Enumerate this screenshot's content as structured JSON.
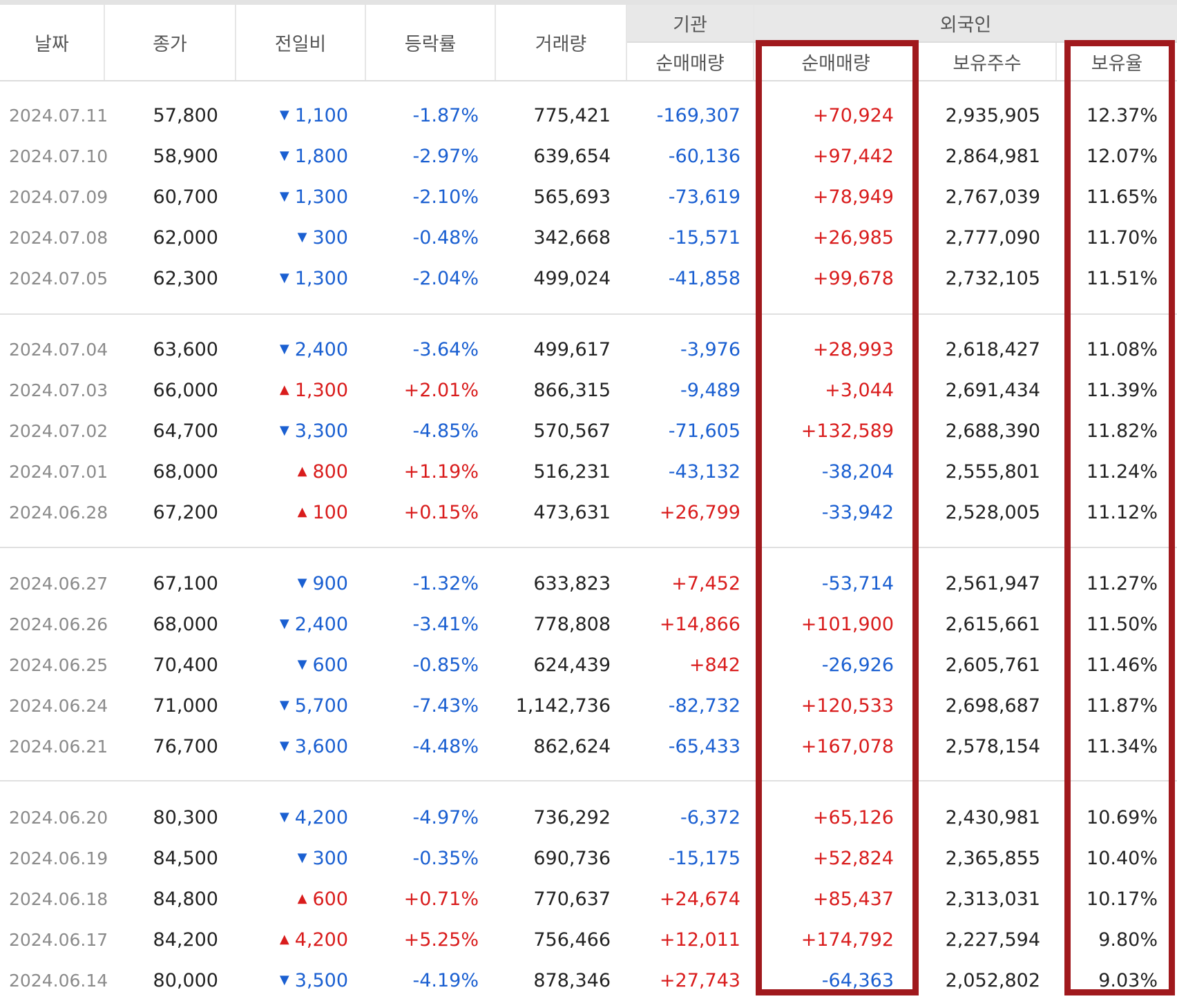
{
  "headers": {
    "date": "날짜",
    "close": "종가",
    "change": "전일비",
    "rate": "등락률",
    "volume": "거래량",
    "institution": "기관",
    "institution_net": "순매매량",
    "foreign": "외국인",
    "foreign_net": "순매매량",
    "foreign_holdings": "보유주수",
    "foreign_ratio": "보유율"
  },
  "colors": {
    "up": "#d91c1c",
    "down": "#1a5fd1",
    "highlight_box": "#a0191d"
  },
  "rows": [
    {
      "date": "2024.07.11",
      "close": "57,800",
      "dir": "down",
      "change": "1,100",
      "rate": "-1.87%",
      "volume": "775,421",
      "inst": "-169,307",
      "foreign_net": "+70,924",
      "holdings": "2,935,905",
      "ratio": "12.37%"
    },
    {
      "date": "2024.07.10",
      "close": "58,900",
      "dir": "down",
      "change": "1,800",
      "rate": "-2.97%",
      "volume": "639,654",
      "inst": "-60,136",
      "foreign_net": "+97,442",
      "holdings": "2,864,981",
      "ratio": "12.07%"
    },
    {
      "date": "2024.07.09",
      "close": "60,700",
      "dir": "down",
      "change": "1,300",
      "rate": "-2.10%",
      "volume": "565,693",
      "inst": "-73,619",
      "foreign_net": "+78,949",
      "holdings": "2,767,039",
      "ratio": "11.65%"
    },
    {
      "date": "2024.07.08",
      "close": "62,000",
      "dir": "down",
      "change": "300",
      "rate": "-0.48%",
      "volume": "342,668",
      "inst": "-15,571",
      "foreign_net": "+26,985",
      "holdings": "2,777,090",
      "ratio": "11.70%"
    },
    {
      "date": "2024.07.05",
      "close": "62,300",
      "dir": "down",
      "change": "1,300",
      "rate": "-2.04%",
      "volume": "499,024",
      "inst": "-41,858",
      "foreign_net": "+99,678",
      "holdings": "2,732,105",
      "ratio": "11.51%"
    },
    {
      "date": "2024.07.04",
      "close": "63,600",
      "dir": "down",
      "change": "2,400",
      "rate": "-3.64%",
      "volume": "499,617",
      "inst": "-3,976",
      "foreign_net": "+28,993",
      "holdings": "2,618,427",
      "ratio": "11.08%"
    },
    {
      "date": "2024.07.03",
      "close": "66,000",
      "dir": "up",
      "change": "1,300",
      "rate": "+2.01%",
      "volume": "866,315",
      "inst": "-9,489",
      "foreign_net": "+3,044",
      "holdings": "2,691,434",
      "ratio": "11.39%"
    },
    {
      "date": "2024.07.02",
      "close": "64,700",
      "dir": "down",
      "change": "3,300",
      "rate": "-4.85%",
      "volume": "570,567",
      "inst": "-71,605",
      "foreign_net": "+132,589",
      "holdings": "2,688,390",
      "ratio": "11.82%"
    },
    {
      "date": "2024.07.01",
      "close": "68,000",
      "dir": "up",
      "change": "800",
      "rate": "+1.19%",
      "volume": "516,231",
      "inst": "-43,132",
      "foreign_net": "-38,204",
      "holdings": "2,555,801",
      "ratio": "11.24%"
    },
    {
      "date": "2024.06.28",
      "close": "67,200",
      "dir": "up",
      "change": "100",
      "rate": "+0.15%",
      "volume": "473,631",
      "inst": "+26,799",
      "foreign_net": "-33,942",
      "holdings": "2,528,005",
      "ratio": "11.12%"
    },
    {
      "date": "2024.06.27",
      "close": "67,100",
      "dir": "down",
      "change": "900",
      "rate": "-1.32%",
      "volume": "633,823",
      "inst": "+7,452",
      "foreign_net": "-53,714",
      "holdings": "2,561,947",
      "ratio": "11.27%"
    },
    {
      "date": "2024.06.26",
      "close": "68,000",
      "dir": "down",
      "change": "2,400",
      "rate": "-3.41%",
      "volume": "778,808",
      "inst": "+14,866",
      "foreign_net": "+101,900",
      "holdings": "2,615,661",
      "ratio": "11.50%"
    },
    {
      "date": "2024.06.25",
      "close": "70,400",
      "dir": "down",
      "change": "600",
      "rate": "-0.85%",
      "volume": "624,439",
      "inst": "+842",
      "foreign_net": "-26,926",
      "holdings": "2,605,761",
      "ratio": "11.46%"
    },
    {
      "date": "2024.06.24",
      "close": "71,000",
      "dir": "down",
      "change": "5,700",
      "rate": "-7.43%",
      "volume": "1,142,736",
      "inst": "-82,732",
      "foreign_net": "+120,533",
      "holdings": "2,698,687",
      "ratio": "11.87%"
    },
    {
      "date": "2024.06.21",
      "close": "76,700",
      "dir": "down",
      "change": "3,600",
      "rate": "-4.48%",
      "volume": "862,624",
      "inst": "-65,433",
      "foreign_net": "+167,078",
      "holdings": "2,578,154",
      "ratio": "11.34%"
    },
    {
      "date": "2024.06.20",
      "close": "80,300",
      "dir": "down",
      "change": "4,200",
      "rate": "-4.97%",
      "volume": "736,292",
      "inst": "-6,372",
      "foreign_net": "+65,126",
      "holdings": "2,430,981",
      "ratio": "10.69%"
    },
    {
      "date": "2024.06.19",
      "close": "84,500",
      "dir": "down",
      "change": "300",
      "rate": "-0.35%",
      "volume": "690,736",
      "inst": "-15,175",
      "foreign_net": "+52,824",
      "holdings": "2,365,855",
      "ratio": "10.40%"
    },
    {
      "date": "2024.06.18",
      "close": "84,800",
      "dir": "up",
      "change": "600",
      "rate": "+0.71%",
      "volume": "770,637",
      "inst": "+24,674",
      "foreign_net": "+85,437",
      "holdings": "2,313,031",
      "ratio": "10.17%"
    },
    {
      "date": "2024.06.17",
      "close": "84,200",
      "dir": "up",
      "change": "4,200",
      "rate": "+5.25%",
      "volume": "756,466",
      "inst": "+12,011",
      "foreign_net": "+174,792",
      "holdings": "2,227,594",
      "ratio": "9.80%"
    },
    {
      "date": "2024.06.14",
      "close": "80,000",
      "dir": "down",
      "change": "3,500",
      "rate": "-4.19%",
      "volume": "878,346",
      "inst": "+27,743",
      "foreign_net": "-64,363",
      "holdings": "2,052,802",
      "ratio": "9.03%"
    }
  ]
}
